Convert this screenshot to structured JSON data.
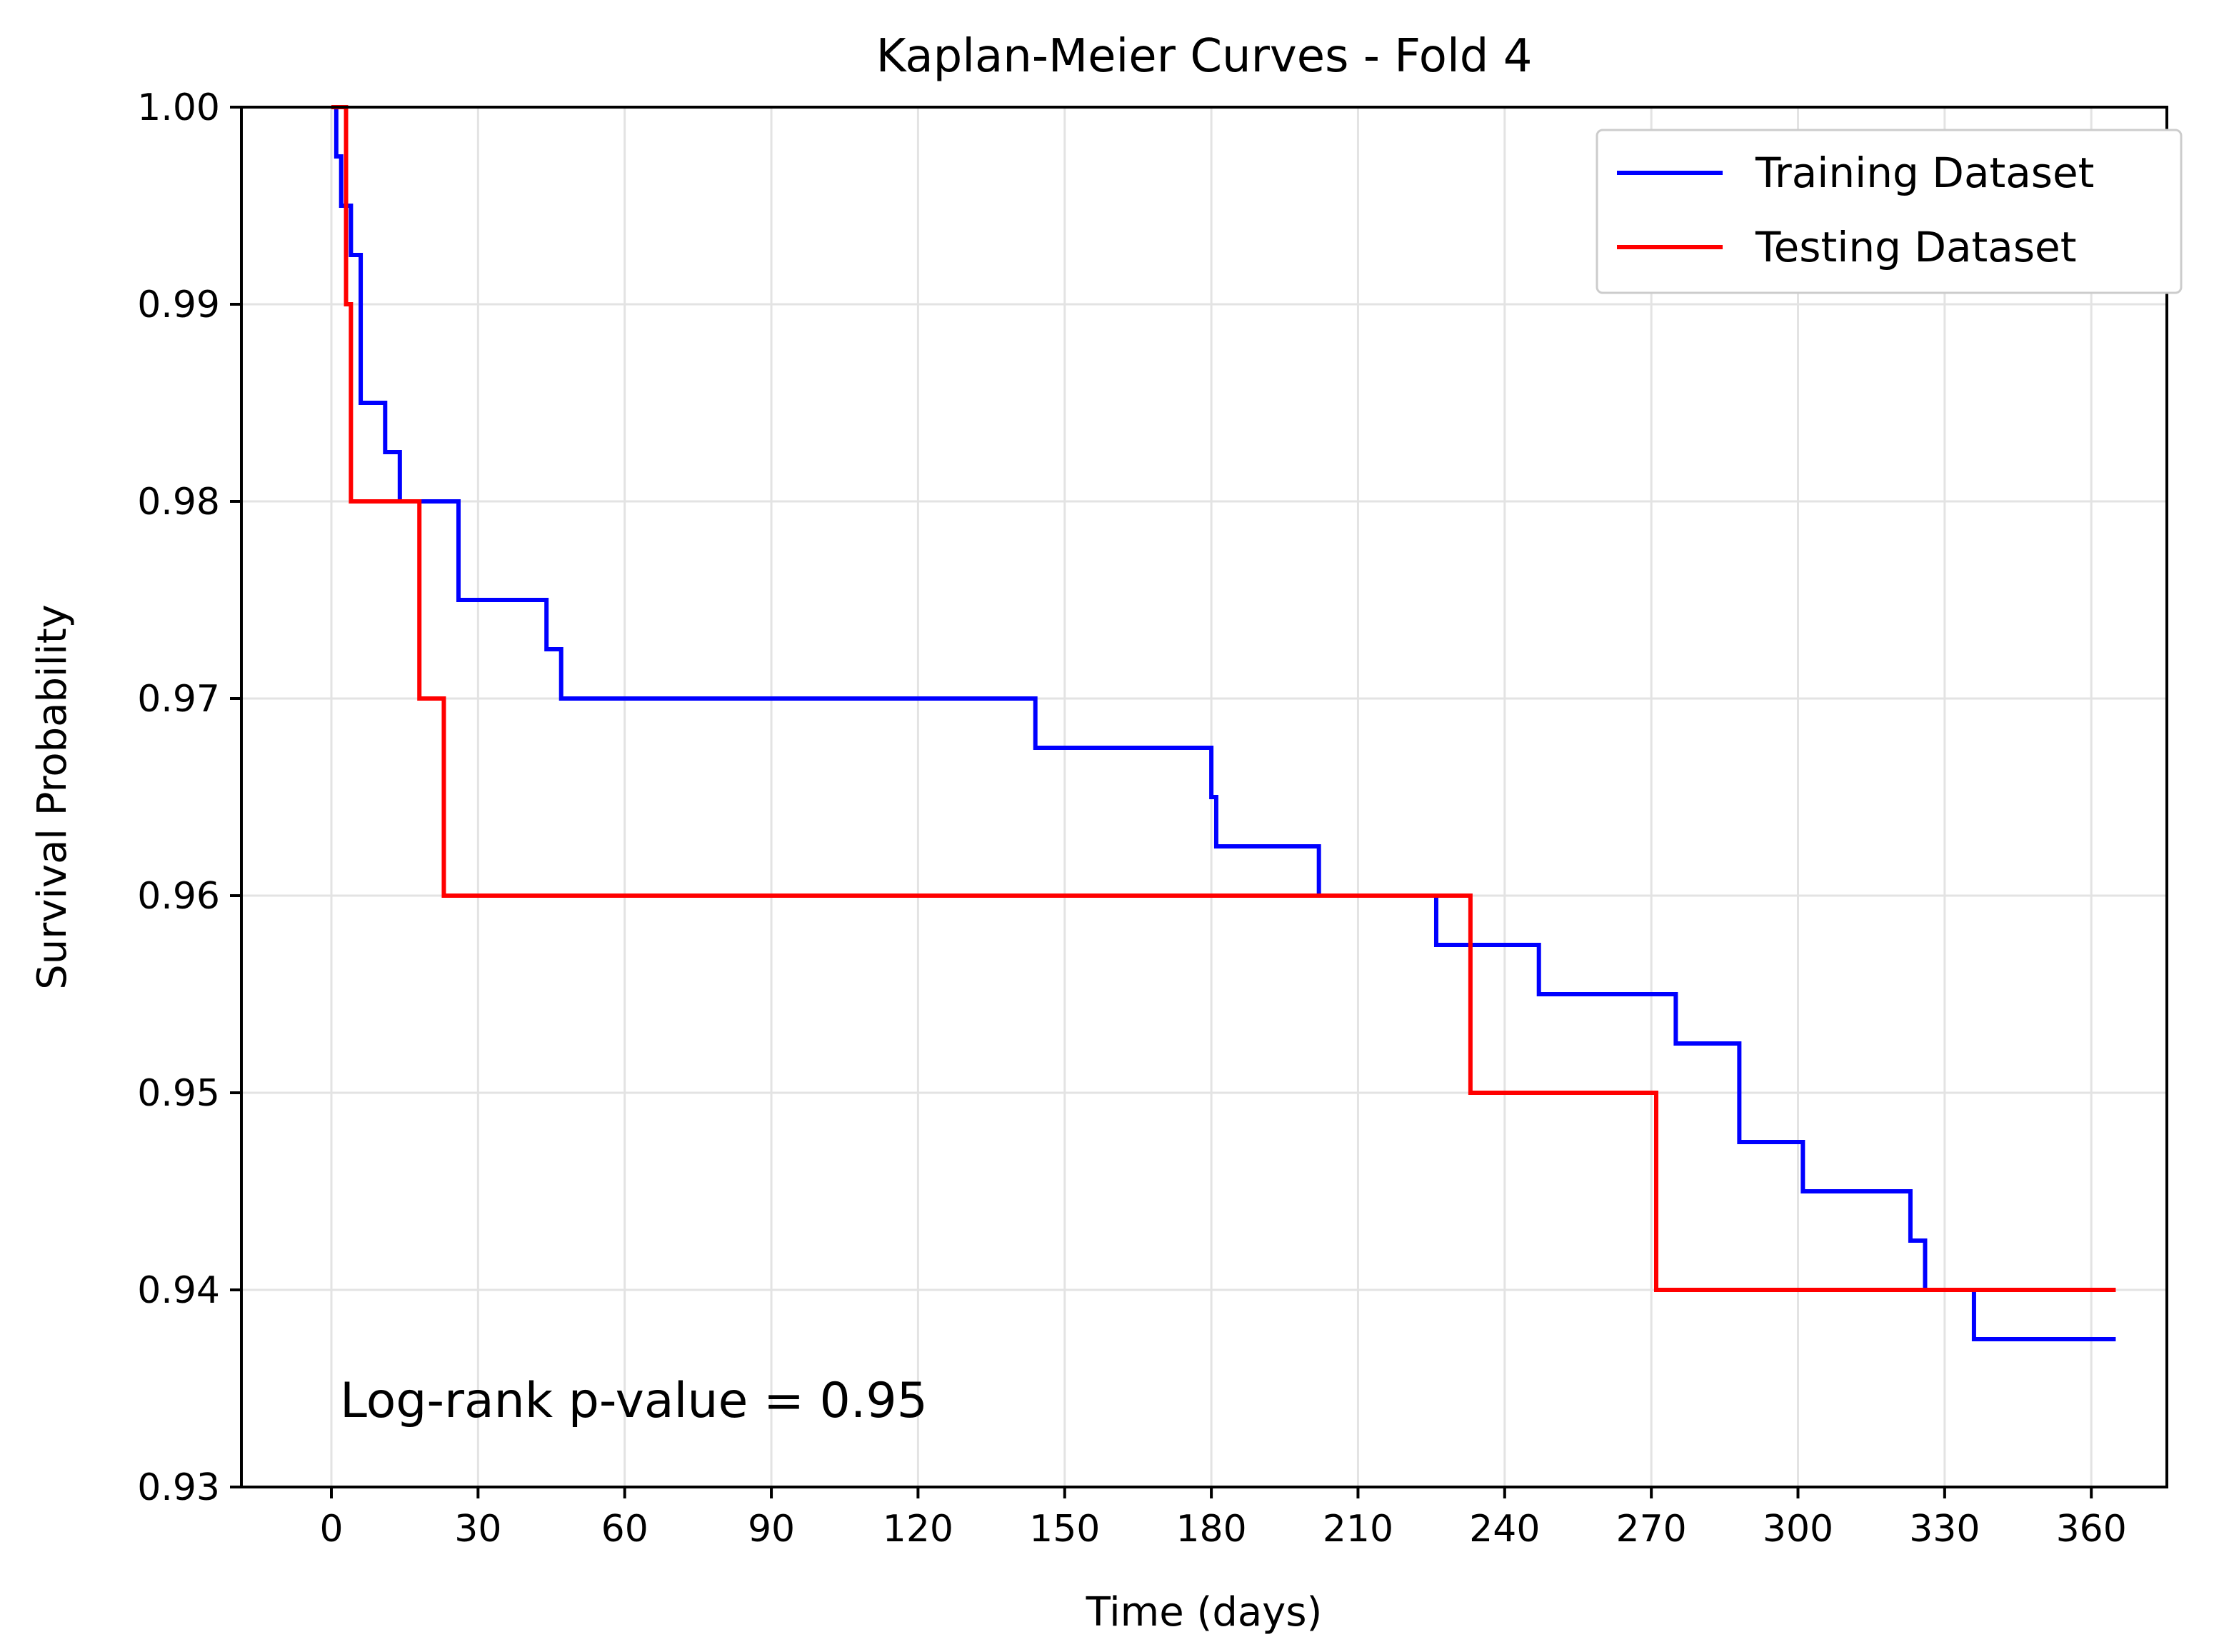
{
  "chart_data": {
    "type": "line",
    "step": "post",
    "title": "Kaplan-Meier Curves - Fold 4",
    "xlabel": "Time (days)",
    "ylabel": "Survival Probability",
    "xlim": [
      -6,
      378
    ],
    "ylim": [
      0.93,
      1.0
    ],
    "x_ticks": [
      0,
      30,
      60,
      90,
      120,
      150,
      180,
      210,
      240,
      270,
      300,
      330,
      360
    ],
    "y_ticks": [
      0.93,
      0.94,
      0.95,
      0.96,
      0.97,
      0.98,
      0.99,
      1.0
    ],
    "y_tick_labels": [
      "0.93",
      "0.94",
      "0.95",
      "0.96",
      "0.97",
      "0.98",
      "0.99",
      "1.00"
    ],
    "grid": true,
    "legend_position": "top-right",
    "annotation": "Log-rank p-value = 0.95",
    "series": [
      {
        "name": "Training Dataset",
        "color": "#0000ff",
        "points": [
          [
            0,
            1.0
          ],
          [
            1,
            0.9975
          ],
          [
            2,
            0.995
          ],
          [
            4,
            0.9925
          ],
          [
            6,
            0.985
          ],
          [
            11,
            0.9825
          ],
          [
            14,
            0.98
          ],
          [
            26,
            0.975
          ],
          [
            44,
            0.9725
          ],
          [
            47,
            0.97
          ],
          [
            144,
            0.9675
          ],
          [
            180,
            0.965
          ],
          [
            181,
            0.9625
          ],
          [
            202,
            0.96
          ],
          [
            226,
            0.9575
          ],
          [
            247,
            0.955
          ],
          [
            275,
            0.9525
          ],
          [
            288,
            0.9475
          ],
          [
            301,
            0.945
          ],
          [
            323,
            0.9425
          ],
          [
            326,
            0.94
          ],
          [
            336,
            0.9375
          ],
          [
            365,
            0.9375
          ]
        ]
      },
      {
        "name": "Testing Dataset",
        "color": "#ff0000",
        "points": [
          [
            0,
            1.0
          ],
          [
            2,
            1.0
          ],
          [
            3,
            0.99
          ],
          [
            4,
            0.98
          ],
          [
            18,
            0.97
          ],
          [
            23,
            0.96
          ],
          [
            233,
            0.95
          ],
          [
            271,
            0.94
          ],
          [
            365,
            0.94
          ]
        ]
      }
    ]
  }
}
